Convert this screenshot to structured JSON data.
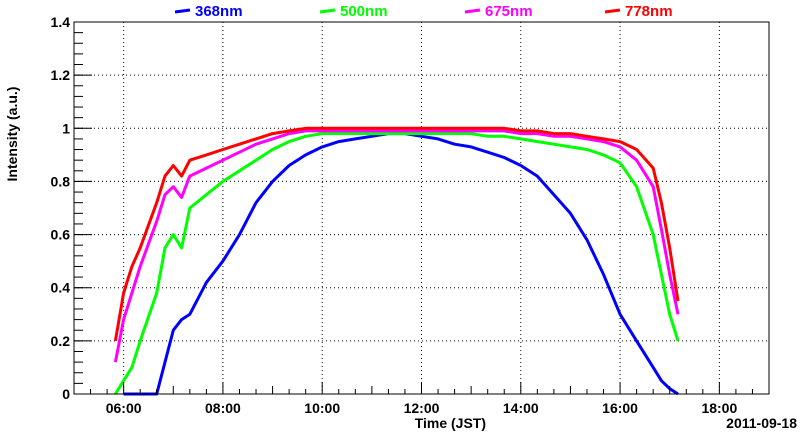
{
  "chart_data": {
    "type": "line",
    "title": "",
    "xlabel": "Time (JST)",
    "ylabel": "Intensity (a.u.)",
    "date_label": "2011-09-18",
    "xlim": [
      "05:00",
      "19:00"
    ],
    "ylim": [
      0,
      1.4
    ],
    "xticks": [
      "06:00",
      "08:00",
      "10:00",
      "12:00",
      "14:00",
      "16:00",
      "18:00"
    ],
    "yticks": [
      "0",
      "0.2",
      "0.4",
      "0.6",
      "0.8",
      "1",
      "1.2",
      "1.4"
    ],
    "grid": true,
    "legend_position": "top",
    "series": [
      {
        "name": "368nm",
        "color": "#0000ff",
        "x": [
          "06:00",
          "06:20",
          "06:40",
          "06:50",
          "07:00",
          "07:10",
          "07:20",
          "07:40",
          "08:00",
          "08:20",
          "08:40",
          "09:00",
          "09:20",
          "09:40",
          "10:00",
          "10:20",
          "10:40",
          "11:00",
          "11:20",
          "11:40",
          "12:00",
          "12:20",
          "12:40",
          "13:00",
          "13:20",
          "13:40",
          "14:00",
          "14:20",
          "14:40",
          "15:00",
          "15:20",
          "15:40",
          "16:00",
          "16:20",
          "16:40",
          "16:50",
          "17:00",
          "17:10"
        ],
        "y": [
          0.0,
          0.0,
          0.0,
          0.12,
          0.24,
          0.28,
          0.3,
          0.42,
          0.5,
          0.6,
          0.72,
          0.8,
          0.86,
          0.9,
          0.93,
          0.95,
          0.96,
          0.97,
          0.98,
          0.98,
          0.97,
          0.96,
          0.94,
          0.93,
          0.91,
          0.89,
          0.86,
          0.82,
          0.75,
          0.68,
          0.58,
          0.45,
          0.3,
          0.2,
          0.1,
          0.05,
          0.02,
          0.0
        ]
      },
      {
        "name": "500nm",
        "color": "#00ff00",
        "x": [
          "05:50",
          "06:00",
          "06:10",
          "06:20",
          "06:40",
          "06:50",
          "07:00",
          "07:10",
          "07:20",
          "07:40",
          "08:00",
          "08:20",
          "08:40",
          "09:00",
          "09:20",
          "09:40",
          "10:00",
          "10:20",
          "10:40",
          "11:00",
          "11:20",
          "11:40",
          "12:00",
          "12:20",
          "12:40",
          "13:00",
          "13:20",
          "13:40",
          "14:00",
          "14:20",
          "14:40",
          "15:00",
          "15:20",
          "15:40",
          "16:00",
          "16:20",
          "16:40",
          "16:50",
          "17:00",
          "17:10"
        ],
        "y": [
          0.0,
          0.05,
          0.1,
          0.2,
          0.38,
          0.55,
          0.6,
          0.55,
          0.7,
          0.75,
          0.8,
          0.84,
          0.88,
          0.92,
          0.95,
          0.97,
          0.98,
          0.98,
          0.98,
          0.98,
          0.98,
          0.98,
          0.98,
          0.98,
          0.98,
          0.98,
          0.97,
          0.97,
          0.96,
          0.95,
          0.94,
          0.93,
          0.92,
          0.9,
          0.87,
          0.78,
          0.6,
          0.45,
          0.3,
          0.2
        ]
      },
      {
        "name": "675nm",
        "color": "#ff00ff",
        "x": [
          "05:50",
          "06:00",
          "06:10",
          "06:20",
          "06:40",
          "06:50",
          "07:00",
          "07:10",
          "07:20",
          "07:40",
          "08:00",
          "08:20",
          "08:40",
          "09:00",
          "09:20",
          "09:40",
          "10:00",
          "10:20",
          "10:40",
          "11:00",
          "11:20",
          "11:40",
          "12:00",
          "12:20",
          "12:40",
          "13:00",
          "13:20",
          "13:40",
          "14:00",
          "14:20",
          "14:40",
          "15:00",
          "15:20",
          "15:40",
          "16:00",
          "16:20",
          "16:40",
          "16:50",
          "17:00",
          "17:10"
        ],
        "y": [
          0.12,
          0.28,
          0.38,
          0.48,
          0.65,
          0.75,
          0.78,
          0.74,
          0.82,
          0.85,
          0.88,
          0.91,
          0.94,
          0.96,
          0.98,
          0.99,
          0.99,
          0.99,
          0.99,
          0.99,
          0.99,
          0.99,
          0.99,
          0.99,
          0.99,
          0.99,
          0.99,
          0.99,
          0.98,
          0.98,
          0.97,
          0.97,
          0.96,
          0.95,
          0.93,
          0.88,
          0.78,
          0.62,
          0.45,
          0.3
        ]
      },
      {
        "name": "778nm",
        "color": "#ff0000",
        "x": [
          "05:50",
          "06:00",
          "06:10",
          "06:20",
          "06:40",
          "06:50",
          "07:00",
          "07:10",
          "07:20",
          "07:40",
          "08:00",
          "08:20",
          "08:40",
          "09:00",
          "09:20",
          "09:40",
          "10:00",
          "10:20",
          "10:40",
          "11:00",
          "11:20",
          "11:40",
          "12:00",
          "12:20",
          "12:40",
          "13:00",
          "13:20",
          "13:40",
          "14:00",
          "14:20",
          "14:40",
          "15:00",
          "15:20",
          "15:40",
          "16:00",
          "16:20",
          "16:40",
          "16:50",
          "17:00",
          "17:10"
        ],
        "y": [
          0.2,
          0.38,
          0.48,
          0.55,
          0.72,
          0.82,
          0.86,
          0.82,
          0.88,
          0.9,
          0.92,
          0.94,
          0.96,
          0.98,
          0.99,
          1.0,
          1.0,
          1.0,
          1.0,
          1.0,
          1.0,
          1.0,
          1.0,
          1.0,
          1.0,
          1.0,
          1.0,
          1.0,
          0.99,
          0.99,
          0.98,
          0.98,
          0.97,
          0.96,
          0.95,
          0.92,
          0.85,
          0.72,
          0.55,
          0.35
        ]
      }
    ]
  }
}
